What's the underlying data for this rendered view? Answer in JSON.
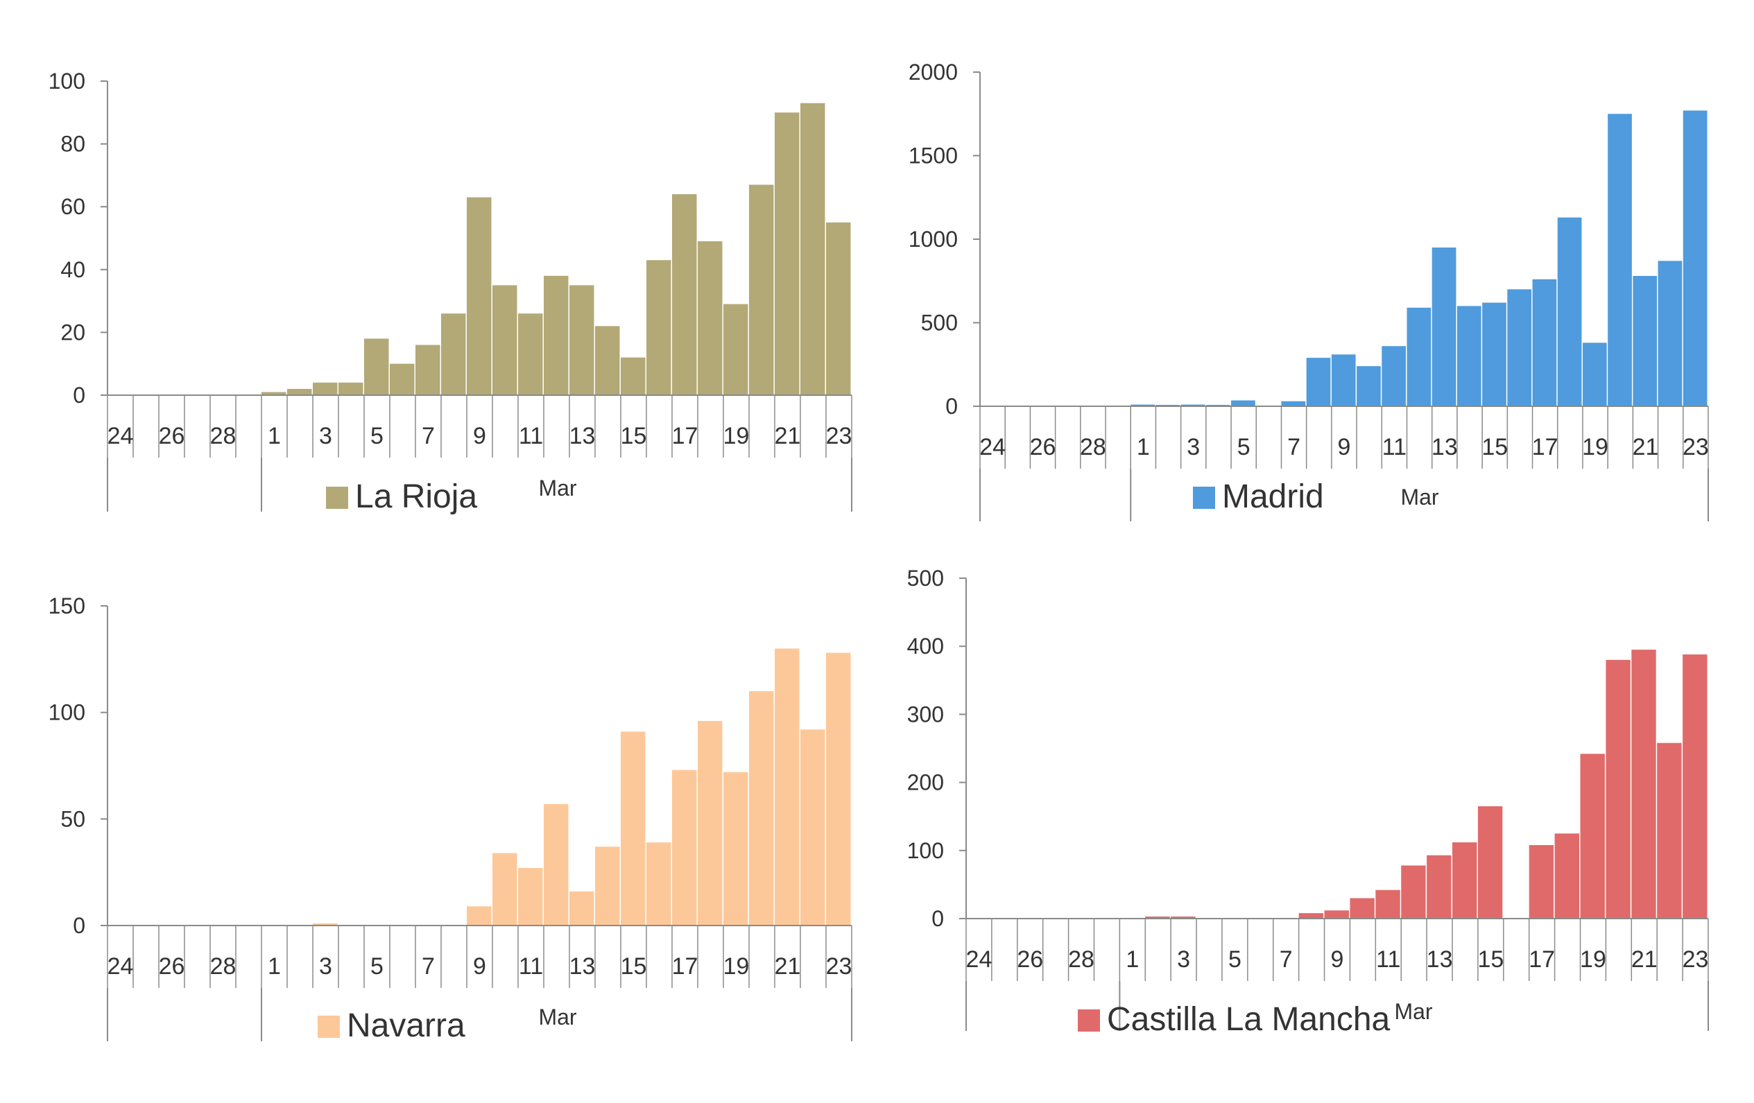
{
  "chart_data": [
    {
      "type": "bar",
      "region": "La Rioja",
      "legend": "La Rioja",
      "color": "#b3a977",
      "month_label": "Mar",
      "categories": [
        "24",
        "25",
        "26",
        "27",
        "28",
        "29",
        "1",
        "2",
        "3",
        "4",
        "5",
        "6",
        "7",
        "8",
        "9",
        "10",
        "11",
        "12",
        "13",
        "14",
        "15",
        "16",
        "17",
        "18",
        "19",
        "20",
        "21",
        "22",
        "23"
      ],
      "tick_labels": [
        "24",
        "26",
        "28",
        "1",
        "3",
        "5",
        "7",
        "9",
        "11",
        "13",
        "15",
        "17",
        "19",
        "21",
        "23"
      ],
      "values": [
        0,
        0,
        0,
        0,
        0,
        0,
        1,
        2,
        4,
        4,
        18,
        10,
        16,
        26,
        63,
        35,
        26,
        38,
        35,
        22,
        12,
        43,
        64,
        49,
        29,
        67,
        90,
        93,
        55
      ],
      "yticks": [
        0,
        20,
        40,
        60,
        80,
        100
      ],
      "ylim": [
        0,
        100
      ]
    },
    {
      "type": "bar",
      "region": "Madrid",
      "legend": "Madrid",
      "color": "#4f9bdd",
      "month_label": "Mar",
      "categories": [
        "24",
        "25",
        "26",
        "27",
        "28",
        "29",
        "1",
        "2",
        "3",
        "4",
        "5",
        "6",
        "7",
        "8",
        "9",
        "10",
        "11",
        "12",
        "13",
        "14",
        "15",
        "16",
        "17",
        "18",
        "19",
        "20",
        "21",
        "22",
        "23"
      ],
      "tick_labels": [
        "24",
        "26",
        "28",
        "1",
        "3",
        "5",
        "7",
        "9",
        "11",
        "13",
        "15",
        "17",
        "19",
        "21",
        "23"
      ],
      "values": [
        0,
        0,
        0,
        0,
        0,
        0,
        10,
        8,
        10,
        8,
        35,
        0,
        30,
        290,
        310,
        240,
        360,
        590,
        950,
        600,
        620,
        700,
        760,
        1130,
        380,
        1750,
        780,
        870,
        1770
      ],
      "yticks": [
        0,
        500,
        1000,
        1500,
        2000
      ],
      "ylim": [
        0,
        2000
      ]
    },
    {
      "type": "bar",
      "region": "Navarra",
      "legend": "Navarra",
      "color": "#fdc899",
      "month_label": "Mar",
      "categories": [
        "24",
        "25",
        "26",
        "27",
        "28",
        "29",
        "1",
        "2",
        "3",
        "4",
        "5",
        "6",
        "7",
        "8",
        "9",
        "10",
        "11",
        "12",
        "13",
        "14",
        "15",
        "16",
        "17",
        "18",
        "19",
        "20",
        "21",
        "22",
        "23"
      ],
      "tick_labels": [
        "24",
        "26",
        "28",
        "1",
        "3",
        "5",
        "7",
        "9",
        "11",
        "13",
        "15",
        "17",
        "19",
        "21",
        "23"
      ],
      "values": [
        0,
        0,
        0,
        0,
        0,
        0,
        0,
        0,
        1,
        0,
        0,
        0,
        0,
        0,
        9,
        34,
        27,
        57,
        16,
        37,
        91,
        39,
        73,
        96,
        72,
        110,
        130,
        92,
        128
      ],
      "yticks": [
        0,
        50,
        100,
        150
      ],
      "ylim": [
        0,
        150
      ]
    },
    {
      "type": "bar",
      "region": "Castilla La Mancha",
      "legend": "Castilla La Mancha",
      "color": "#e06a6a",
      "month_label": "Mar",
      "categories": [
        "24",
        "25",
        "26",
        "27",
        "28",
        "29",
        "1",
        "2",
        "3",
        "4",
        "5",
        "6",
        "7",
        "8",
        "9",
        "10",
        "11",
        "12",
        "13",
        "14",
        "15",
        "16",
        "17",
        "18",
        "19",
        "20",
        "21",
        "22",
        "23"
      ],
      "tick_labels": [
        "24",
        "26",
        "28",
        "1",
        "3",
        "5",
        "7",
        "9",
        "11",
        "13",
        "15",
        "17",
        "19",
        "21",
        "23"
      ],
      "values": [
        0,
        0,
        0,
        0,
        0,
        0,
        0,
        3,
        3,
        0,
        0,
        0,
        0,
        8,
        12,
        30,
        42,
        78,
        93,
        112,
        165,
        0,
        108,
        125,
        242,
        380,
        395,
        258,
        388
      ],
      "yticks": [
        0,
        100,
        200,
        300,
        400,
        500
      ],
      "ylim": [
        0,
        500
      ]
    }
  ]
}
